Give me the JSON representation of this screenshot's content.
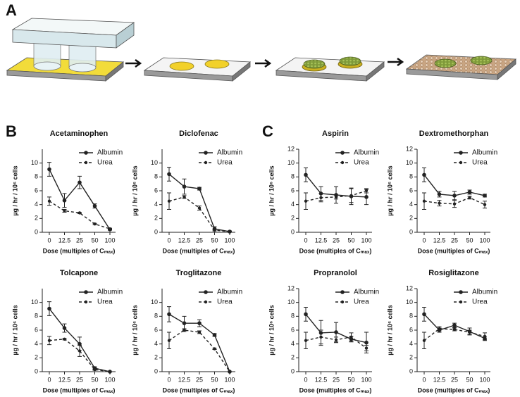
{
  "panel_labels": [
    "A",
    "B",
    "C"
  ],
  "chart_data": [
    {
      "type": "line",
      "title": "Acetaminophen",
      "x_label": "Dose (multiples of Cₘₐₓ)",
      "y_label": "µg / hr / 10⁶ cells",
      "categories": [
        "0",
        "12.5",
        "25",
        "50",
        "100"
      ],
      "ylim": [
        0,
        12
      ],
      "yticks": [
        0,
        2,
        4,
        6,
        8,
        10
      ],
      "legend": "upper right",
      "series": [
        {
          "name": "Albumin",
          "color": "#222222",
          "linestyle": "solid",
          "values": [
            9.1,
            4.6,
            7.2,
            3.8,
            0.4
          ],
          "errors": [
            1.0,
            1.0,
            0.9,
            0.3,
            0.1
          ]
        },
        {
          "name": "Urea",
          "color": "#222222",
          "linestyle": "dashed",
          "values": [
            4.5,
            3.1,
            2.8,
            1.2,
            0.5
          ],
          "errors": [
            0.6,
            0.2,
            0.1,
            0.1,
            0.1
          ]
        }
      ]
    },
    {
      "type": "line",
      "title": "Diclofenac",
      "x_label": "Dose (multiples of Cₘₐₓ)",
      "y_label": "µg / hr / 10⁶ cells",
      "categories": [
        "0",
        "12.5",
        "25",
        "50",
        "100"
      ],
      "ylim": [
        0,
        12
      ],
      "yticks": [
        0,
        2,
        4,
        6,
        8,
        10
      ],
      "legend": "upper right",
      "series": [
        {
          "name": "Albumin",
          "color": "#222222",
          "linestyle": "solid",
          "values": [
            8.4,
            6.6,
            6.3,
            0.5,
            0.1
          ],
          "errors": [
            1.0,
            1.1,
            0.2,
            0.3,
            0.1
          ]
        },
        {
          "name": "Urea",
          "color": "#222222",
          "linestyle": "dashed",
          "values": [
            4.5,
            5.1,
            3.5,
            0.3,
            0.1
          ],
          "errors": [
            1.2,
            0.2,
            0.3,
            0.1,
            0.05
          ]
        }
      ]
    },
    {
      "type": "line",
      "title": "Aspirin",
      "x_label": "Dose (multiples of Cₘₐₓ)",
      "y_label": "µg / hr / 10⁶ cells",
      "categories": [
        "0",
        "12.5",
        "25",
        "50",
        "100"
      ],
      "ylim": [
        0,
        12
      ],
      "yticks": [
        0,
        2,
        4,
        6,
        8,
        10,
        12
      ],
      "legend": "upper right",
      "series": [
        {
          "name": "Albumin",
          "color": "#222222",
          "linestyle": "solid",
          "values": [
            8.3,
            5.6,
            5.4,
            5.2,
            5.1
          ],
          "errors": [
            1.0,
            1.0,
            1.2,
            1.2,
            1.1
          ]
        },
        {
          "name": "Urea",
          "color": "#222222",
          "linestyle": "dashed",
          "values": [
            4.5,
            5.0,
            5.1,
            5.3,
            6.0
          ],
          "errors": [
            1.2,
            0.6,
            0.3,
            1.0,
            0.3
          ]
        }
      ]
    },
    {
      "type": "line",
      "title": "Dextromethorphan",
      "x_label": "Dose (multiples of Cₘₐₓ)",
      "y_label": "µg / hr / 10⁶ cells",
      "categories": [
        "0",
        "12.5",
        "25",
        "50",
        "100"
      ],
      "ylim": [
        0,
        12
      ],
      "yticks": [
        0,
        2,
        4,
        6,
        8,
        10,
        12
      ],
      "legend": "upper right",
      "series": [
        {
          "name": "Albumin",
          "color": "#222222",
          "linestyle": "solid",
          "values": [
            8.3,
            5.5,
            5.3,
            5.8,
            5.3
          ],
          "errors": [
            1.0,
            0.4,
            0.6,
            0.3,
            0.2
          ]
        },
        {
          "name": "Urea",
          "color": "#222222",
          "linestyle": "dashed",
          "values": [
            4.5,
            4.2,
            4.1,
            5.0,
            4.0
          ],
          "errors": [
            1.2,
            0.4,
            0.5,
            0.2,
            0.5
          ]
        }
      ]
    },
    {
      "type": "line",
      "title": "Tolcapone",
      "x_label": "Dose (multiples of Cₘₐₓ)",
      "y_label": "µg / hr / 10⁶ cells",
      "categories": [
        "0",
        "12.5",
        "25",
        "50",
        "100"
      ],
      "ylim": [
        0,
        12
      ],
      "yticks": [
        0,
        2,
        4,
        6,
        8,
        10
      ],
      "legend": "upper right",
      "series": [
        {
          "name": "Albumin",
          "color": "#222222",
          "linestyle": "solid",
          "values": [
            9.1,
            6.3,
            4.0,
            0.5,
            0
          ],
          "errors": [
            1.0,
            0.6,
            1.0,
            0.2,
            0
          ]
        },
        {
          "name": "Urea",
          "color": "#222222",
          "linestyle": "dashed",
          "values": [
            4.5,
            4.7,
            3.0,
            0.3,
            0
          ],
          "errors": [
            0.6,
            0.1,
            0.8,
            0.1,
            0
          ]
        }
      ]
    },
    {
      "type": "line",
      "title": "Troglitazone",
      "x_label": "Dose (multiples of Cₘₐₓ)",
      "y_label": "µg / hr / 10⁶ cells",
      "categories": [
        "0",
        "12.5",
        "25",
        "50",
        "100"
      ],
      "ylim": [
        0,
        12
      ],
      "yticks": [
        0,
        2,
        4,
        6,
        8,
        10
      ],
      "legend": "upper right",
      "series": [
        {
          "name": "Albumin",
          "color": "#222222",
          "linestyle": "solid",
          "values": [
            8.3,
            7.0,
            7.0,
            5.3,
            0
          ],
          "errors": [
            1.1,
            1.0,
            0.5,
            0.2,
            0
          ]
        },
        {
          "name": "Urea",
          "color": "#222222",
          "linestyle": "dashed",
          "values": [
            4.5,
            6.0,
            5.7,
            3.3,
            0
          ],
          "errors": [
            1.2,
            0.2,
            0.2,
            0.1,
            0
          ]
        }
      ]
    },
    {
      "type": "line",
      "title": "Propranolol",
      "x_label": "Dose (multiples of Cₘₐₓ)",
      "y_label": "µg / hr / 10⁶ cells",
      "categories": [
        "0",
        "12.5",
        "25",
        "50",
        "100"
      ],
      "ylim": [
        0,
        12
      ],
      "yticks": [
        0,
        2,
        4,
        6,
        8,
        10,
        12
      ],
      "legend": "upper right",
      "series": [
        {
          "name": "Albumin",
          "color": "#222222",
          "linestyle": "solid",
          "values": [
            8.3,
            5.6,
            5.7,
            4.7,
            4.2
          ],
          "errors": [
            1.0,
            1.8,
            1.4,
            0.4,
            1.5
          ]
        },
        {
          "name": "Urea",
          "color": "#222222",
          "linestyle": "dashed",
          "values": [
            4.5,
            5.0,
            4.6,
            5.0,
            3.4
          ],
          "errors": [
            1.2,
            1.0,
            0.4,
            0.6,
            0.4
          ]
        }
      ]
    },
    {
      "type": "line",
      "title": "Rosiglitazone",
      "x_label": "Dose (multiples of Cₘₐₓ)",
      "y_label": "µg / hr / 10⁶ cells",
      "categories": [
        "0",
        "12.5",
        "25",
        "50",
        "100"
      ],
      "ylim": [
        0,
        12
      ],
      "yticks": [
        0,
        2,
        4,
        6,
        8,
        10,
        12
      ],
      "legend": "upper right",
      "series": [
        {
          "name": "Albumin",
          "color": "#222222",
          "linestyle": "solid",
          "values": [
            8.3,
            6.0,
            6.7,
            5.8,
            4.8
          ],
          "errors": [
            1.0,
            0.3,
            0.3,
            0.5,
            0.3
          ]
        },
        {
          "name": "Urea",
          "color": "#222222",
          "linestyle": "dashed",
          "values": [
            4.5,
            6.2,
            6.1,
            5.7,
            5.1
          ],
          "errors": [
            1.2,
            0.3,
            0.2,
            0.3,
            0.5
          ]
        }
      ]
    }
  ]
}
